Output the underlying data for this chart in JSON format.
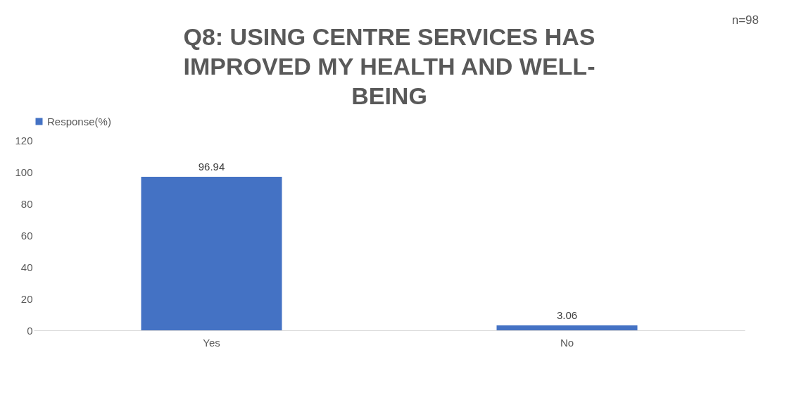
{
  "chart_data": {
    "type": "bar",
    "title": "Q8: USING CENTRE SERVICES HAS IMPROVED MY HEALTH AND WELL-BEING",
    "categories": [
      "Yes",
      "No"
    ],
    "series": [
      {
        "name": "Response(%)",
        "color": "#4472c4",
        "values": [
          96.94,
          3.06
        ]
      }
    ],
    "ylim": [
      0,
      120
    ],
    "yticks": [
      0,
      20,
      40,
      60,
      80,
      100,
      120
    ],
    "grid": false,
    "legend": "top",
    "data_labels": true,
    "annotations": [
      "n=98"
    ]
  }
}
